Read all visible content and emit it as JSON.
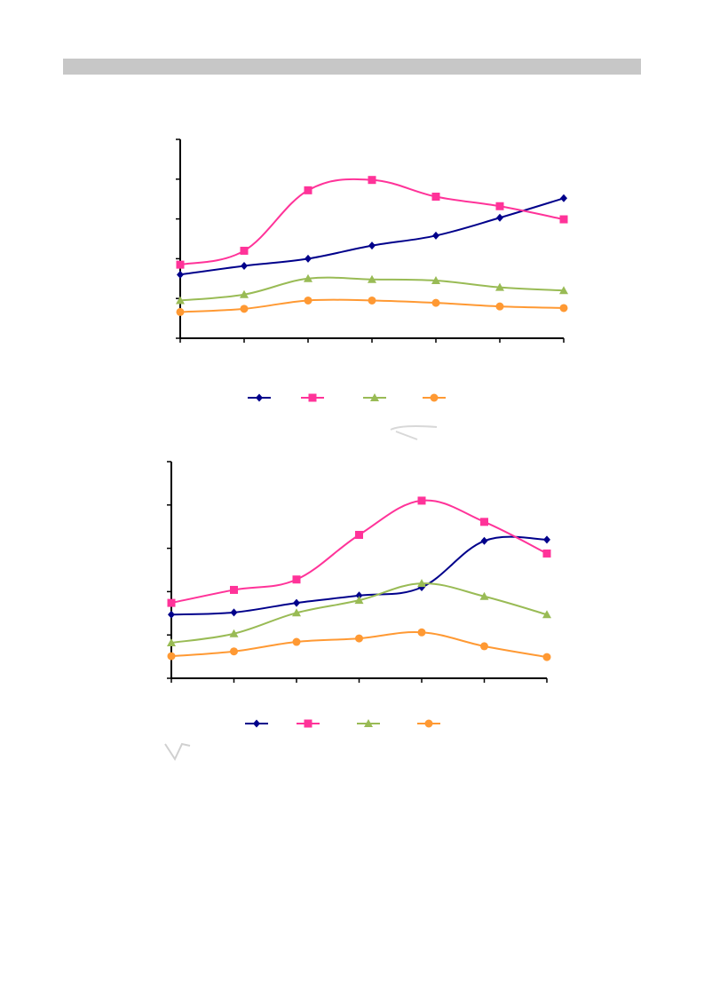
{
  "page": {
    "header_bar_color": "#c7c7c7"
  },
  "series_styles": [
    {
      "color": "#00008b",
      "marker": "diamond"
    },
    {
      "color": "#ff3399",
      "marker": "square"
    },
    {
      "color": "#99bb55",
      "marker": "triangle"
    },
    {
      "color": "#ff9933",
      "marker": "circle"
    }
  ],
  "chart_data": [
    {
      "type": "line",
      "x": [
        1,
        2,
        3,
        4,
        5,
        6,
        7
      ],
      "ylim": [
        0,
        5
      ],
      "y_ticks": 5,
      "x_ticks": 6,
      "grid": false,
      "legend_position": "bottom",
      "series": [
        {
          "values": [
            1.6,
            1.82,
            2.0,
            2.33,
            2.58,
            3.03,
            3.52
          ]
        },
        {
          "values": [
            1.85,
            2.2,
            3.72,
            3.98,
            3.56,
            3.32,
            2.99
          ]
        },
        {
          "values": [
            0.95,
            1.1,
            1.5,
            1.48,
            1.45,
            1.28,
            1.2
          ]
        },
        {
          "values": [
            0.66,
            0.74,
            0.95,
            0.95,
            0.89,
            0.8,
            0.76
          ]
        }
      ]
    },
    {
      "type": "line",
      "x": [
        1,
        2,
        3,
        4,
        5,
        6,
        7
      ],
      "ylim": [
        0,
        5
      ],
      "y_ticks": 5,
      "x_ticks": 6,
      "grid": false,
      "legend_position": "bottom",
      "series": [
        {
          "values": [
            1.47,
            1.52,
            1.74,
            1.91,
            2.1,
            3.17,
            3.2
          ]
        },
        {
          "values": [
            1.74,
            2.04,
            2.28,
            3.31,
            4.1,
            3.61,
            2.88
          ]
        },
        {
          "values": [
            0.82,
            1.03,
            1.51,
            1.8,
            2.19,
            1.89,
            1.47
          ]
        },
        {
          "values": [
            0.51,
            0.62,
            0.84,
            0.92,
            1.06,
            0.74,
            0.49
          ]
        }
      ]
    }
  ]
}
